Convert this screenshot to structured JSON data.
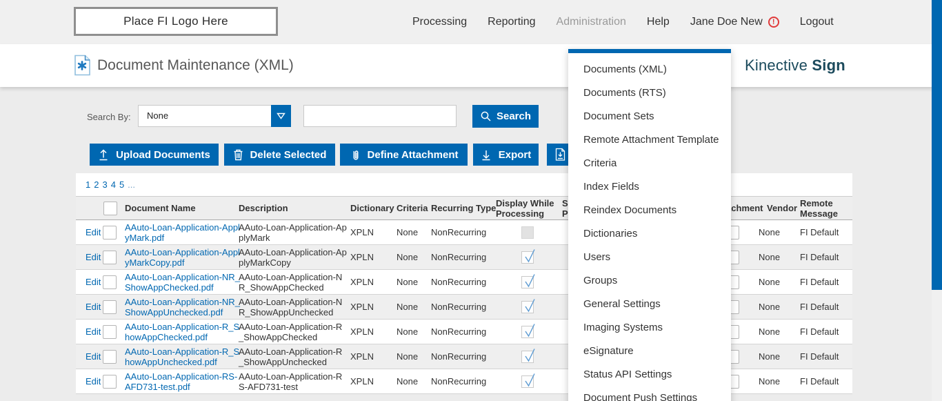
{
  "colors": {
    "accent_blue": "#0067b1",
    "brand_teal": "#1b4a5c",
    "alert_red": "#e03a3a",
    "check_blue": "#5b9ad2"
  },
  "topbar": {
    "logo_text": "Place FI Logo Here",
    "nav": [
      {
        "label": "Processing"
      },
      {
        "label": "Reporting"
      },
      {
        "label": "Administration",
        "active": true
      },
      {
        "label": "Help"
      },
      {
        "label": "Jane Doe New",
        "alert": "!"
      },
      {
        "label": "Logout"
      }
    ]
  },
  "header": {
    "title": "Document Maintenance (XML)",
    "brand_name": "Kinective",
    "brand_product": "Sign"
  },
  "search": {
    "label": "Search By:",
    "selected_option": "None",
    "input_value": "",
    "button_label": "Search"
  },
  "toolbar": {
    "upload_label": "Upload Documents",
    "delete_label": "Delete Selected",
    "attach_label": "Define Attachment",
    "export_label": "Export"
  },
  "pagination": {
    "pages": [
      "1",
      "2",
      "3",
      "4",
      "5"
    ],
    "ellipsis": "..."
  },
  "admin_menu": {
    "items": [
      "Documents (XML)",
      "Documents (RTS)",
      "Document Sets",
      "Remote Attachment Template",
      "Criteria",
      "Index Fields",
      "Reindex Documents",
      "Dictionaries",
      "Users",
      "Groups",
      "General Settings",
      "Imaging Systems",
      "eSignature",
      "Status API Settings",
      "Document Push Settings"
    ]
  },
  "table": {
    "headers": {
      "document_name": "Document Name",
      "description": "Description",
      "dictionary": "Dictionary",
      "criteria": "Criteria",
      "recurring_type": "Recurring Type",
      "display_line1": "Display While",
      "display_line2": "Processing",
      "partial_line1": "S",
      "partial_line2": "P",
      "attachment": "Attachment",
      "vendor": "Vendor",
      "remote_line1": "Remote",
      "remote_line2": "Message"
    },
    "edit_label": "Edit",
    "rows": [
      {
        "name": "AAuto-Loan-Application-ApplyMark.pdf",
        "description": "AAuto-Loan-Application-ApplyMark",
        "dictionary": "XPLN",
        "criteria": "None",
        "recurring_type": "NonRecurring",
        "display_while_processing": false,
        "vendor": "None",
        "remote_message": "FI Default"
      },
      {
        "name": "AAuto-Loan-Application-ApplyMarkCopy.pdf",
        "description": "AAuto-Loan-Application-ApplyMarkCopy",
        "dictionary": "XPLN",
        "criteria": "None",
        "recurring_type": "NonRecurring",
        "display_while_processing": true,
        "vendor": "None",
        "remote_message": "FI Default"
      },
      {
        "name": "AAuto-Loan-Application-NR_ShowAppChecked.pdf",
        "description": "AAuto-Loan-Application-NR_ShowAppChecked",
        "dictionary": "XPLN",
        "criteria": "None",
        "recurring_type": "NonRecurring",
        "display_while_processing": true,
        "vendor": "None",
        "remote_message": "FI Default"
      },
      {
        "name": "AAuto-Loan-Application-NR_ShowAppUnchecked.pdf",
        "description": "AAuto-Loan-Application-NR_ShowAppUnchecked",
        "dictionary": "XPLN",
        "criteria": "None",
        "recurring_type": "NonRecurring",
        "display_while_processing": true,
        "vendor": "None",
        "remote_message": "FI Default"
      },
      {
        "name": "AAuto-Loan-Application-R_ShowAppChecked.pdf",
        "description": "AAuto-Loan-Application-R_ShowAppChecked",
        "dictionary": "XPLN",
        "criteria": "None",
        "recurring_type": "NonRecurring",
        "display_while_processing": true,
        "vendor": "None",
        "remote_message": "FI Default"
      },
      {
        "name": "AAuto-Loan-Application-R_ShowAppUnchecked.pdf",
        "description": "AAuto-Loan-Application-R_ShowAppUnchecked",
        "dictionary": "XPLN",
        "criteria": "None",
        "recurring_type": "NonRecurring",
        "display_while_processing": true,
        "vendor": "None",
        "remote_message": "FI Default"
      },
      {
        "name": "AAuto-Loan-Application-RS-AFD731-test.pdf",
        "description": "AAuto-Loan-Application-RS-AFD731-test",
        "dictionary": "XPLN",
        "criteria": "None",
        "recurring_type": "NonRecurring",
        "display_while_processing": true,
        "vendor": "None",
        "remote_message": "FI Default"
      }
    ]
  }
}
